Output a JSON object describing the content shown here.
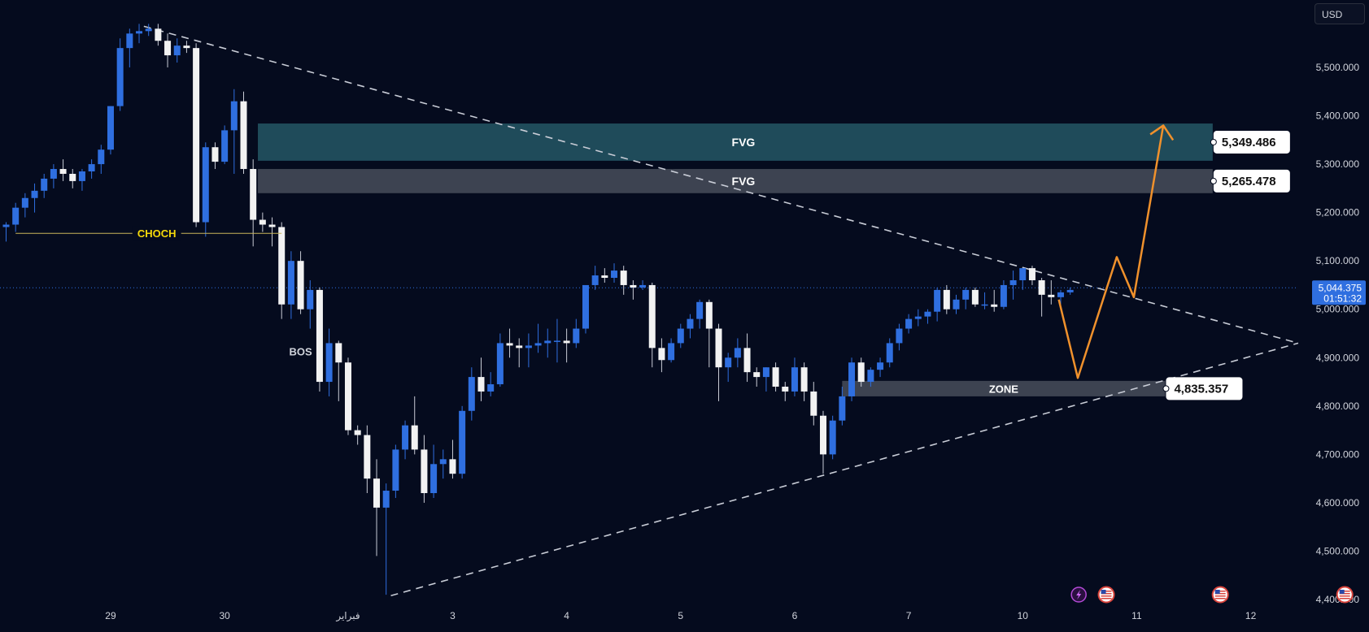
{
  "currency_badge": "USD",
  "colors": {
    "background": "#050b1e",
    "bull": "#2f6fe0",
    "bear": "#f2f2f2",
    "wick": "#c9ccd6",
    "fvg_upper": "#1f4b5a",
    "fvg_lower": "#3d4351",
    "zone": "#3d4351",
    "trendline": "#c8ccd6",
    "projection": "#f0912c",
    "choch": "#f5d90a",
    "price_line": "#2f6fe0",
    "label_bg": "#ffffff",
    "current_price_bg": "#2f6fe0"
  },
  "chart_data": {
    "type": "candlestick",
    "currency": "USD",
    "ylim": [
      4395,
      5600
    ],
    "y_ticks": [
      {
        "value": 5500,
        "label": "5,500.000"
      },
      {
        "value": 5400,
        "label": "5,400.000"
      },
      {
        "value": 5300,
        "label": "5,300.000"
      },
      {
        "value": 5200,
        "label": "5,200.000"
      },
      {
        "value": 5100,
        "label": "5,100.000"
      },
      {
        "value": 5000,
        "label": "5,000.000"
      },
      {
        "value": 4900,
        "label": "4,900.000"
      },
      {
        "value": 4800,
        "label": "4,800.000"
      },
      {
        "value": 4700,
        "label": "4,700.000"
      },
      {
        "value": 4600,
        "label": "4,600.000"
      },
      {
        "value": 4500,
        "label": "4,500.000"
      },
      {
        "value": 4400,
        "label": "4,400.000"
      }
    ],
    "x_ticks": [
      {
        "index": 11,
        "label": "29"
      },
      {
        "index": 23,
        "label": "30"
      },
      {
        "index": 36,
        "label": "فبراير"
      },
      {
        "index": 47,
        "label": "3"
      },
      {
        "index": 59,
        "label": "4"
      },
      {
        "index": 71,
        "label": "5"
      },
      {
        "index": 83,
        "label": "6"
      },
      {
        "index": 95,
        "label": "7"
      },
      {
        "index": 107,
        "label": "10"
      },
      {
        "index": 119,
        "label": "11"
      },
      {
        "index": 131,
        "label": "12"
      }
    ],
    "x_index_range": [
      -0.5,
      147
    ],
    "candles": [
      [
        5170,
        5180,
        5140,
        5175
      ],
      [
        5175,
        5220,
        5160,
        5210
      ],
      [
        5210,
        5240,
        5190,
        5230
      ],
      [
        5230,
        5260,
        5200,
        5245
      ],
      [
        5245,
        5280,
        5230,
        5270
      ],
      [
        5270,
        5300,
        5250,
        5290
      ],
      [
        5290,
        5310,
        5265,
        5280
      ],
      [
        5280,
        5290,
        5250,
        5265
      ],
      [
        5265,
        5290,
        5245,
        5285
      ],
      [
        5285,
        5310,
        5270,
        5300
      ],
      [
        5300,
        5340,
        5280,
        5330
      ],
      [
        5330,
        5420,
        5320,
        5420
      ],
      [
        5420,
        5560,
        5410,
        5540
      ],
      [
        5540,
        5580,
        5500,
        5570
      ],
      [
        5570,
        5590,
        5550,
        5575
      ],
      [
        5575,
        5590,
        5565,
        5580
      ],
      [
        5580,
        5590,
        5545,
        5555
      ],
      [
        5555,
        5570,
        5500,
        5525
      ],
      [
        5525,
        5560,
        5510,
        5545
      ],
      [
        5545,
        5555,
        5530,
        5540
      ],
      [
        5540,
        5550,
        5170,
        5180
      ],
      [
        5180,
        5345,
        5150,
        5335
      ],
      [
        5335,
        5345,
        5290,
        5305
      ],
      [
        5305,
        5380,
        5300,
        5370
      ],
      [
        5370,
        5455,
        5280,
        5430
      ],
      [
        5430,
        5450,
        5280,
        5290
      ],
      [
        5290,
        5310,
        5130,
        5185
      ],
      [
        5185,
        5200,
        5160,
        5175
      ],
      [
        5175,
        5190,
        5130,
        5170
      ],
      [
        5170,
        5180,
        4980,
        5010
      ],
      [
        5010,
        5120,
        4980,
        5100
      ],
      [
        5100,
        5120,
        4990,
        5000
      ],
      [
        5000,
        5060,
        4960,
        5040
      ],
      [
        5040,
        5045,
        4830,
        4850
      ],
      [
        4850,
        4960,
        4820,
        4930
      ],
      [
        4930,
        4935,
        4810,
        4890
      ],
      [
        4890,
        4900,
        4740,
        4750
      ],
      [
        4750,
        4760,
        4720,
        4740
      ],
      [
        4740,
        4760,
        4620,
        4650
      ],
      [
        4650,
        4690,
        4490,
        4590
      ],
      [
        4590,
        4640,
        4410,
        4625
      ],
      [
        4625,
        4720,
        4610,
        4710
      ],
      [
        4710,
        4770,
        4690,
        4760
      ],
      [
        4760,
        4820,
        4700,
        4710
      ],
      [
        4710,
        4740,
        4600,
        4620
      ],
      [
        4620,
        4720,
        4610,
        4680
      ],
      [
        4680,
        4710,
        4650,
        4690
      ],
      [
        4690,
        4730,
        4650,
        4660
      ],
      [
        4660,
        4800,
        4650,
        4790
      ],
      [
        4790,
        4880,
        4770,
        4860
      ],
      [
        4860,
        4900,
        4810,
        4830
      ],
      [
        4830,
        4870,
        4820,
        4845
      ],
      [
        4845,
        4950,
        4840,
        4930
      ],
      [
        4930,
        4960,
        4900,
        4925
      ],
      [
        4925,
        4940,
        4880,
        4920
      ],
      [
        4920,
        4950,
        4880,
        4925
      ],
      [
        4925,
        4970,
        4910,
        4930
      ],
      [
        4930,
        4960,
        4900,
        4935
      ],
      [
        4935,
        4980,
        4890,
        4935
      ],
      [
        4935,
        4960,
        4890,
        4930
      ],
      [
        4930,
        4980,
        4920,
        4960
      ],
      [
        4960,
        5045,
        4950,
        5050
      ],
      [
        5050,
        5090,
        5040,
        5070
      ],
      [
        5070,
        5085,
        5055,
        5065
      ],
      [
        5065,
        5095,
        5055,
        5080
      ],
      [
        5080,
        5090,
        5030,
        5050
      ],
      [
        5050,
        5060,
        5020,
        5045
      ],
      [
        5045,
        5060,
        5040,
        5050
      ],
      [
        5050,
        5055,
        4880,
        4920
      ],
      [
        4920,
        4940,
        4870,
        4895
      ],
      [
        4895,
        4940,
        4890,
        4930
      ],
      [
        4930,
        4970,
        4920,
        4960
      ],
      [
        4960,
        4990,
        4940,
        4980
      ],
      [
        4980,
        5020,
        4960,
        5015
      ],
      [
        5015,
        5020,
        4880,
        4960
      ],
      [
        4960,
        4970,
        4810,
        4880
      ],
      [
        4880,
        4910,
        4850,
        4900
      ],
      [
        4900,
        4940,
        4880,
        4920
      ],
      [
        4920,
        4950,
        4850,
        4870
      ],
      [
        4870,
        4880,
        4840,
        4860
      ],
      [
        4860,
        4880,
        4830,
        4880
      ],
      [
        4880,
        4890,
        4830,
        4840
      ],
      [
        4840,
        4850,
        4810,
        4830
      ],
      [
        4830,
        4900,
        4820,
        4880
      ],
      [
        4880,
        4890,
        4810,
        4830
      ],
      [
        4830,
        4850,
        4760,
        4780
      ],
      [
        4780,
        4790,
        4660,
        4700
      ],
      [
        4700,
        4780,
        4690,
        4770
      ],
      [
        4770,
        4840,
        4760,
        4820
      ],
      [
        4820,
        4900,
        4810,
        4890
      ],
      [
        4890,
        4900,
        4840,
        4850
      ],
      [
        4850,
        4880,
        4840,
        4875
      ],
      [
        4875,
        4900,
        4860,
        4890
      ],
      [
        4890,
        4940,
        4880,
        4930
      ],
      [
        4930,
        4970,
        4915,
        4960
      ],
      [
        4960,
        4990,
        4950,
        4980
      ],
      [
        4980,
        5000,
        4965,
        4985
      ],
      [
        4985,
        5000,
        4970,
        4995
      ],
      [
        4995,
        5045,
        4975,
        5040
      ],
      [
        5040,
        5050,
        4990,
        5000
      ],
      [
        5000,
        5030,
        4990,
        5020
      ],
      [
        5020,
        5045,
        5000,
        5040
      ],
      [
        5040,
        5045,
        5005,
        5010
      ],
      [
        5010,
        5035,
        5000,
        5010
      ],
      [
        5010,
        5040,
        4995,
        5005
      ],
      [
        5005,
        5060,
        5000,
        5050
      ],
      [
        5050,
        5080,
        5020,
        5060
      ],
      [
        5060,
        5080,
        5040,
        5085
      ],
      [
        5085,
        5090,
        5050,
        5060
      ],
      [
        5060,
        5065,
        4985,
        5030
      ],
      [
        5030,
        5060,
        5010,
        5025
      ],
      [
        5025,
        5040,
        5010,
        5035
      ],
      [
        5035,
        5045,
        5030,
        5040
      ]
    ],
    "annotations": {
      "descending_trendline": [
        {
          "x": 14.5,
          "y": 5585
        },
        {
          "x": 136,
          "y": 4930
        }
      ],
      "ascending_trendline": [
        {
          "x": 40.5,
          "y": 4408
        },
        {
          "x": 136,
          "y": 4930
        }
      ],
      "fvg_zones": [
        {
          "label": "FVG",
          "x_start": 26.5,
          "x_end": 127,
          "y_low": 5307,
          "y_high": 5384,
          "price_label": "5,349.486"
        },
        {
          "label": "FVG",
          "x_start": 26.5,
          "x_end": 127,
          "y_low": 5240,
          "y_high": 5290,
          "price_label": "5,265.478"
        }
      ],
      "zone": {
        "label": "ZONE",
        "x_start": 88,
        "x_end": 122,
        "y_low": 4820,
        "y_high": 4852,
        "price_label": "4,835.357"
      },
      "choch": {
        "label": "CHOCH",
        "x_start": 1,
        "x_end": 29,
        "y": 5157
      },
      "bos": {
        "label": "BOS",
        "x": 31,
        "y": 4905
      },
      "projection_path": [
        {
          "x": 110.8,
          "y": 5020
        },
        {
          "x": 112.8,
          "y": 4858
        },
        {
          "x": 116.9,
          "y": 5108
        },
        {
          "x": 118.7,
          "y": 5025
        },
        {
          "x": 121.8,
          "y": 5380
        }
      ],
      "projection_arrowhead": {
        "x": 121.8,
        "y": 5380
      }
    },
    "current_price": {
      "value": 5044.375,
      "label": "5,044.375",
      "countdown": "01:51:32"
    },
    "event_icons": [
      {
        "x": 112.9,
        "icon": "lightning-icon"
      },
      {
        "x": 115.8,
        "icon": "us-flag-icon"
      },
      {
        "x": 127.8,
        "icon": "us-flag-icon"
      },
      {
        "x": 140.9,
        "icon": "us-flag-icon"
      }
    ]
  }
}
